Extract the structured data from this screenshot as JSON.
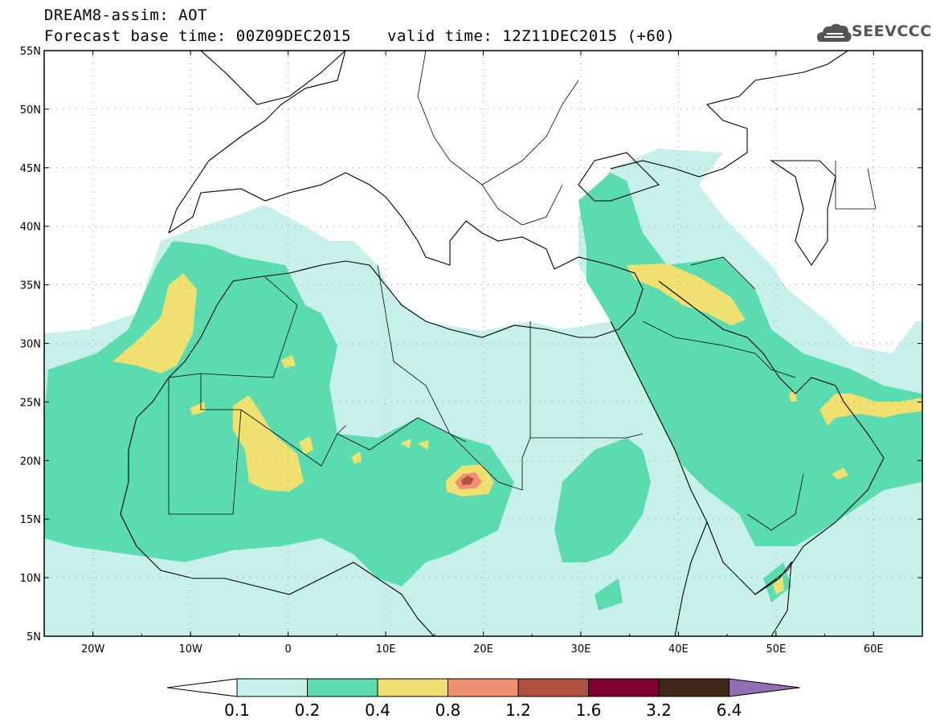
{
  "header": {
    "title": "DREAM8-assim: AOT",
    "base_time": "Forecast base time: 00Z09DEC2015",
    "valid_time": "valid time: 12Z11DEC2015 (+60)",
    "logo_text": "SEEVCCC",
    "logo_icon": "cloud-logo-icon"
  },
  "map": {
    "projection": "lat-lon",
    "lon_range": [
      -25,
      65
    ],
    "lat_range": [
      5,
      55
    ],
    "lat_labels": [
      "55N",
      "50N",
      "45N",
      "40N",
      "35N",
      "30N",
      "25N",
      "20N",
      "15N",
      "10N",
      "5N"
    ],
    "lon_labels": [
      "20W",
      "10W",
      "0",
      "10E",
      "20E",
      "30E",
      "40E",
      "50E",
      "60E"
    ],
    "grid": "dotted"
  },
  "colors": {
    "c1": "#c8f0ea",
    "c2": "#5adcb0",
    "c3": "#f0e070",
    "c4": "#f09070",
    "c5": "#b05040",
    "c6": "#800030",
    "c7": "#402818",
    "c8": "#9070b0"
  },
  "colorbar": {
    "labels": [
      "0.1",
      "0.2",
      "0.4",
      "0.8",
      "1.2",
      "1.6",
      "3.2",
      "6.4"
    ]
  }
}
